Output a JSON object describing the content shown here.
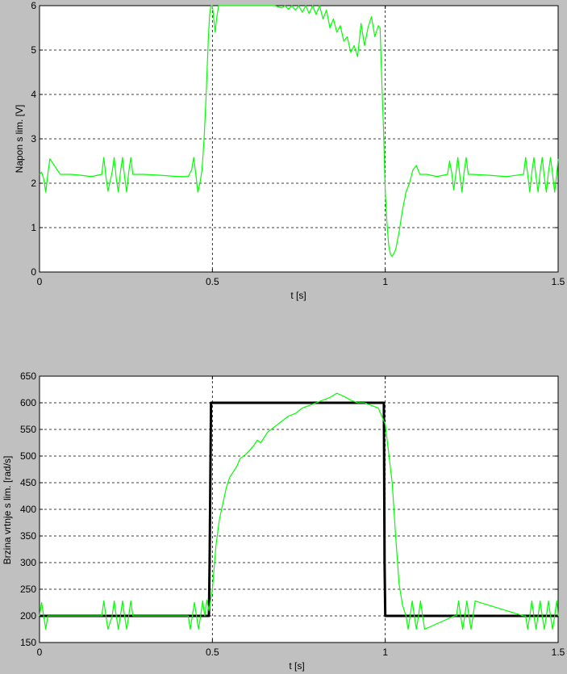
{
  "chart_data": [
    {
      "type": "line",
      "title": "",
      "xlabel": "t [s]",
      "ylabel": "Napon s lim. [V]",
      "xlim": [
        0,
        1.5
      ],
      "ylim": [
        0,
        6
      ],
      "xticks": [
        0,
        0.5,
        1,
        1.5
      ],
      "yticks": [
        0,
        1,
        2,
        3,
        4,
        5,
        6
      ],
      "grid": true,
      "colors": {
        "voltage": "#00ff00"
      },
      "series": [
        {
          "x": [
            0,
            0.006,
            0.012,
            0.018,
            0.024,
            0.03,
            0.06,
            0.09,
            0.12,
            0.15,
            0.18,
            0.186,
            0.192,
            0.198,
            0.21,
            0.216,
            0.222,
            0.228,
            0.234,
            0.24,
            0.246,
            0.252,
            0.258,
            0.264,
            0.27,
            0.3,
            0.35,
            0.4,
            0.43,
            0.44,
            0.446,
            0.452,
            0.458,
            0.464,
            0.47,
            0.476,
            0.482,
            0.488,
            0.492,
            0.496,
            0.5,
            0.504,
            0.508,
            0.512,
            0.518,
            0.524,
            0.53,
            0.55,
            0.6,
            0.65,
            0.68,
            0.7,
            0.71,
            0.72,
            0.73,
            0.74,
            0.75,
            0.76,
            0.77,
            0.78,
            0.79,
            0.8,
            0.81,
            0.82,
            0.83,
            0.84,
            0.85,
            0.86,
            0.87,
            0.88,
            0.89,
            0.9,
            0.91,
            0.92,
            0.93,
            0.94,
            0.95,
            0.96,
            0.97,
            0.98,
            0.985,
            0.99,
            0.995,
            1.0,
            1.005,
            1.01,
            1.015,
            1.02,
            1.03,
            1.04,
            1.05,
            1.06,
            1.07,
            1.08,
            1.09,
            1.1,
            1.12,
            1.15,
            1.18,
            1.186,
            1.192,
            1.198,
            1.204,
            1.21,
            1.216,
            1.222,
            1.228,
            1.234,
            1.24,
            1.25,
            1.3,
            1.35,
            1.4,
            1.406,
            1.412,
            1.418,
            1.424,
            1.43,
            1.436,
            1.442,
            1.448,
            1.454,
            1.46,
            1.466,
            1.472,
            1.478,
            1.484,
            1.49,
            1.496,
            1.5
          ],
          "y": [
            2.2,
            2.25,
            2.1,
            1.8,
            2.2,
            2.55,
            2.2,
            2.2,
            2.18,
            2.15,
            2.2,
            2.58,
            2.15,
            1.82,
            2.25,
            2.58,
            2.1,
            1.8,
            2.25,
            2.58,
            2.15,
            1.8,
            2.25,
            2.58,
            2.2,
            2.2,
            2.18,
            2.15,
            2.15,
            2.3,
            2.58,
            2.2,
            1.8,
            2.0,
            2.3,
            3.0,
            4.0,
            5.2,
            5.8,
            6.0,
            6.0,
            5.7,
            5.4,
            5.7,
            6.0,
            6.0,
            6.0,
            6.0,
            6.0,
            6.0,
            6.0,
            5.95,
            6.0,
            5.92,
            6.0,
            5.9,
            6.0,
            5.85,
            6.0,
            5.82,
            6.0,
            5.8,
            6.0,
            5.7,
            5.9,
            5.5,
            5.7,
            5.4,
            5.55,
            5.2,
            5.3,
            4.95,
            5.1,
            4.85,
            5.6,
            5.1,
            5.5,
            5.75,
            5.3,
            5.55,
            5.5,
            4.3,
            3.2,
            1.8,
            1.1,
            0.6,
            0.4,
            0.35,
            0.5,
            0.9,
            1.4,
            1.8,
            2.0,
            2.3,
            2.4,
            2.2,
            2.2,
            2.15,
            2.2,
            2.5,
            2.25,
            1.85,
            2.2,
            2.58,
            2.15,
            1.8,
            2.25,
            2.58,
            2.2,
            2.2,
            2.18,
            2.15,
            2.2,
            2.58,
            2.2,
            1.8,
            2.25,
            2.58,
            2.15,
            1.8,
            2.25,
            2.58,
            2.15,
            1.8,
            2.25,
            2.58,
            2.2,
            1.8,
            2.2,
            2.55
          ]
        }
      ]
    },
    {
      "type": "line",
      "title": "",
      "xlabel": "t [s]",
      "ylabel": "Brzina vrtnje s lim. [rad/s]",
      "xlim": [
        0,
        1.5
      ],
      "ylim": [
        150,
        650
      ],
      "xticks": [
        0,
        0.5,
        1,
        1.5
      ],
      "yticks": [
        150,
        200,
        250,
        300,
        350,
        400,
        450,
        500,
        550,
        600,
        650
      ],
      "grid": true,
      "colors": {
        "reference": "#000000",
        "speed": "#00ff00"
      },
      "series": [
        {
          "x": [
            0,
            0.49,
            0.492,
            0.494,
            0.496,
            0.5,
            0.996,
            0.998,
            1.0,
            1.5
          ],
          "y": [
            200,
            200,
            300,
            450,
            600,
            600,
            600,
            300,
            200,
            200
          ]
        },
        {
          "x": [
            0,
            0.006,
            0.012,
            0.018,
            0.024,
            0.03,
            0.18,
            0.186,
            0.192,
            0.198,
            0.21,
            0.216,
            0.222,
            0.228,
            0.234,
            0.24,
            0.246,
            0.252,
            0.258,
            0.264,
            0.27,
            0.43,
            0.436,
            0.442,
            0.448,
            0.454,
            0.46,
            0.466,
            0.472,
            0.478,
            0.484,
            0.49,
            0.5,
            0.51,
            0.52,
            0.53,
            0.54,
            0.55,
            0.56,
            0.57,
            0.58,
            0.6,
            0.62,
            0.63,
            0.64,
            0.66,
            0.68,
            0.7,
            0.72,
            0.74,
            0.76,
            0.78,
            0.8,
            0.82,
            0.84,
            0.86,
            0.88,
            0.9,
            0.92,
            0.94,
            0.96,
            0.98,
            1.0,
            1.02,
            1.03,
            1.04,
            1.05,
            1.06,
            1.066,
            1.072,
            1.078,
            1.084,
            1.09,
            1.096,
            1.102,
            1.108,
            1.114,
            1.2,
            1.206,
            1.212,
            1.218,
            1.224,
            1.23,
            1.236,
            1.242,
            1.248,
            1.254,
            1.26,
            1.4,
            1.406,
            1.412,
            1.418,
            1.424,
            1.43,
            1.436,
            1.442,
            1.448,
            1.454,
            1.46,
            1.466,
            1.472,
            1.478,
            1.484,
            1.49,
            1.496,
            1.5
          ],
          "y": [
            200,
            225,
            200,
            175,
            200,
            200,
            200,
            228,
            200,
            175,
            200,
            228,
            200,
            175,
            200,
            228,
            200,
            175,
            200,
            228,
            200,
            200,
            175,
            200,
            225,
            200,
            175,
            200,
            228,
            200,
            230,
            210,
            250,
            330,
            380,
            410,
            440,
            460,
            470,
            480,
            495,
            505,
            520,
            530,
            525,
            545,
            555,
            565,
            575,
            580,
            590,
            595,
            600,
            605,
            610,
            618,
            612,
            605,
            600,
            600,
            595,
            590,
            560,
            450,
            350,
            260,
            220,
            200,
            175,
            200,
            228,
            200,
            175,
            200,
            228,
            200,
            175,
            200,
            200,
            228,
            200,
            175,
            200,
            228,
            200,
            175,
            200,
            228,
            200,
            200,
            175,
            200,
            228,
            200,
            175,
            200,
            228,
            200,
            175,
            200,
            228,
            200,
            175,
            200,
            228,
            200
          ]
        }
      ]
    }
  ]
}
